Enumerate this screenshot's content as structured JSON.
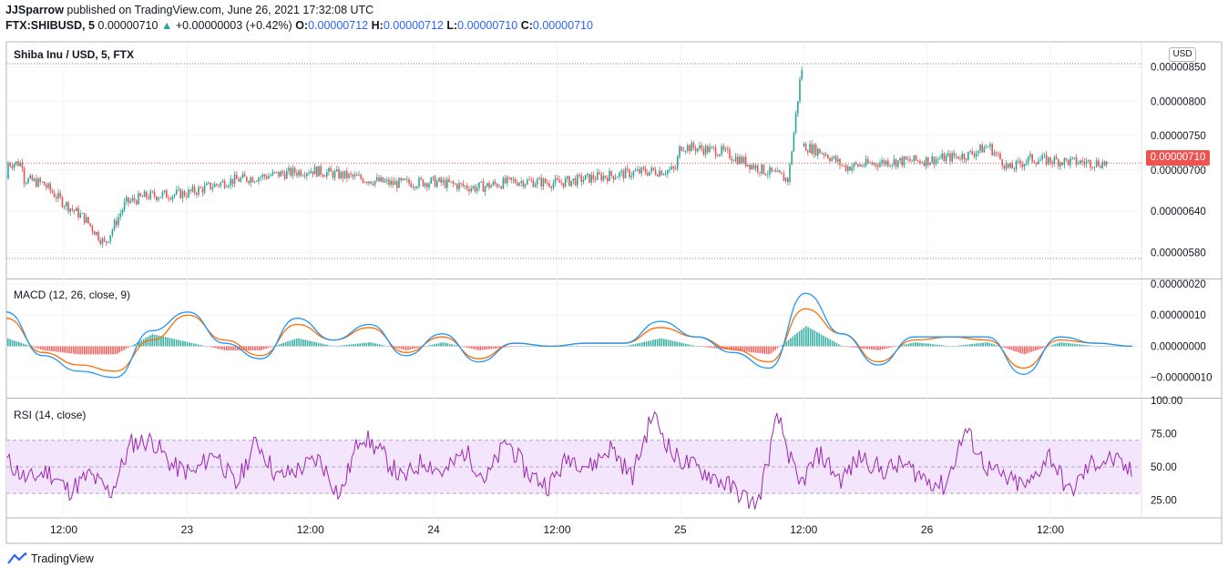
{
  "header": {
    "publisher": "JJSparrow",
    "published_text": "published on TradingView.com, June 26, 2021 17:32:08 UTC",
    "symbol": "FTX:SHIBUSD, 5",
    "last": "0.00000710",
    "change": "+0.00000003 (+0.42%)",
    "o_label": "O:",
    "o_value": "0.00000712",
    "h_label": "H:",
    "h_value": "0.00000712",
    "l_label": "L:",
    "l_value": "0.00000710",
    "c_label": "C:",
    "c_value": "0.00000710"
  },
  "footer": {
    "brand": "TradingView"
  },
  "colors": {
    "up": "#26a69a",
    "down": "#ef5350",
    "macd": "#2196f3",
    "signal": "#ff6d00",
    "rsi": "#9c27b0",
    "rsi_band": "#f3e5fc",
    "grid": "#f0f3fa",
    "axis_text": "#131722"
  },
  "chart_data": [
    {
      "type": "candlestick",
      "title": "Shiba Inu / USD, 5, FTX",
      "currency": "USD",
      "current_price_label": "0.00000710",
      "y_ticks": [
        "0.00000850",
        "0.00000800",
        "0.00000750",
        "0.00000710",
        "0.00000700",
        "0.00000640",
        "0.00000580"
      ],
      "ylim": [
        5.5e-06,
        8.6e-06
      ],
      "x_ticks": [
        "12:00",
        "23",
        "12:00",
        "24",
        "12:00",
        "25",
        "12:00",
        "26",
        "12:00"
      ],
      "series": [
        {
          "name": "close",
          "x": [
            "2021-06-22 08:00",
            "2021-06-22 10:00",
            "2021-06-22 12:00",
            "2021-06-22 14:00",
            "2021-06-22 16:00",
            "2021-06-22 18:00",
            "2021-06-22 20:00",
            "2021-06-23 00:00",
            "2021-06-23 04:00",
            "2021-06-23 08:00",
            "2021-06-23 12:00",
            "2021-06-23 16:00",
            "2021-06-23 20:00",
            "2021-06-24 00:00",
            "2021-06-24 04:00",
            "2021-06-24 08:00",
            "2021-06-24 12:00",
            "2021-06-24 16:00",
            "2021-06-24 20:00",
            "2021-06-24 23:30",
            "2021-06-25 00:00",
            "2021-06-25 04:00",
            "2021-06-25 08:00",
            "2021-06-25 10:30",
            "2021-06-25 11:45",
            "2021-06-25 12:00",
            "2021-06-25 14:00",
            "2021-06-25 16:00",
            "2021-06-25 20:00",
            "2021-06-26 00:00",
            "2021-06-26 04:00",
            "2021-06-26 06:00",
            "2021-06-26 08:00",
            "2021-06-26 10:00",
            "2021-06-26 14:00",
            "2021-06-26 17:30"
          ],
          "values": [
            6.87e-06,
            6.8e-06,
            6.52e-06,
            6.3e-06,
            5.92e-06,
            6.52e-06,
            6.62e-06,
            6.66e-06,
            6.84e-06,
            6.92e-06,
            7e-06,
            6.9e-06,
            6.8e-06,
            6.83e-06,
            6.74e-06,
            6.84e-06,
            6.81e-06,
            6.9e-06,
            6.97e-06,
            7e-06,
            7.35e-06,
            7.27e-06,
            7e-06,
            6.86e-06,
            8.45e-06,
            7.35e-06,
            7.25e-06,
            7.04e-06,
            7.12e-06,
            7.14e-06,
            7.22e-06,
            7.35e-06,
            7.01e-06,
            7.16e-06,
            7.12e-06,
            7.1e-06
          ]
        }
      ]
    },
    {
      "type": "line",
      "title": "MACD (12, 26, close, 9)",
      "y_ticks": [
        "0.00000020",
        "0.00000010",
        "0.00000000",
        "−0.00000010"
      ],
      "ylim": [
        -1.3e-07,
        2e-07
      ],
      "series": [
        {
          "name": "MACD",
          "values": [
            1.1e-07,
            -3e-08,
            -8e-08,
            -1e-07,
            5e-08,
            1.1e-07,
            1e-08,
            -4e-08,
            9e-08,
            2e-08,
            7e-08,
            -3e-08,
            4e-08,
            -5e-08,
            1e-08,
            0.0,
            1e-08,
            1e-08,
            8e-08,
            3e-08,
            -2e-08,
            -7e-08,
            1.7e-07,
            4e-08,
            -6e-08,
            3e-08,
            3e-08,
            3e-08,
            -9e-08,
            3e-08,
            1e-08,
            0.0
          ]
        },
        {
          "name": "Signal",
          "values": [
            9e-08,
            -2e-08,
            -6e-08,
            -8e-08,
            2e-08,
            1e-07,
            2e-08,
            -3e-08,
            7e-08,
            2e-08,
            6e-08,
            -2e-08,
            3e-08,
            -4e-08,
            1e-08,
            0.0,
            1e-08,
            1e-08,
            6e-08,
            3e-08,
            -1e-08,
            -5e-08,
            1.2e-07,
            4e-08,
            -5e-08,
            2e-08,
            3e-08,
            2e-08,
            -7e-08,
            2e-08,
            1e-08,
            0.0
          ]
        }
      ]
    },
    {
      "type": "line",
      "title": "RSI (14, close)",
      "y_ticks": [
        "100.00",
        "75.00",
        "50.00",
        "25.00"
      ],
      "ylim": [
        13,
        100
      ],
      "bands": [
        30,
        70
      ],
      "series": [
        {
          "name": "RSI",
          "values": [
            55,
            40,
            47,
            32,
            44,
            30,
            68,
            70,
            50,
            45,
            62,
            35,
            70,
            42,
            48,
            56,
            28,
            75,
            60,
            40,
            55,
            45,
            62,
            40,
            70,
            45,
            36,
            58,
            50,
            65,
            42,
            90,
            58,
            50,
            42,
            32,
            20,
            88,
            35,
            60,
            40,
            58,
            47,
            52,
            42,
            35,
            78,
            50,
            40,
            35,
            60,
            30,
            52,
            56,
            45
          ]
        }
      ]
    }
  ]
}
